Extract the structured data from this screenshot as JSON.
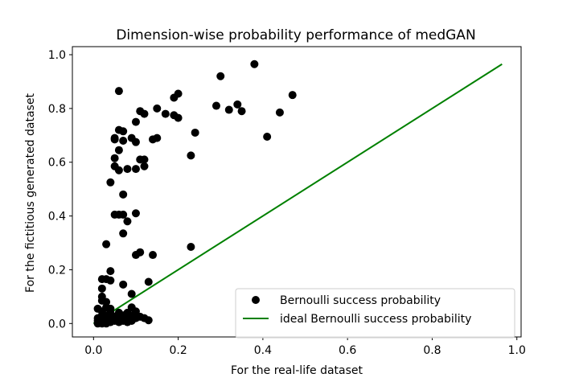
{
  "chart_data": {
    "type": "scatter",
    "title": "Dimension-wise probability performance of medGAN",
    "xlabel": "For the real-life dataset",
    "ylabel": "For the fictitious generated dataset",
    "xlim": [
      -0.05,
      1.01
    ],
    "ylim": [
      -0.05,
      1.03
    ],
    "xticks": [
      0.0,
      0.2,
      0.4,
      0.6,
      0.8,
      1.0
    ],
    "yticks": [
      0.0,
      0.2,
      0.4,
      0.6,
      0.8,
      1.0
    ],
    "tick_labels_x": [
      "0.0",
      "0.2",
      "0.4",
      "0.6",
      "0.8",
      "1.0"
    ],
    "tick_labels_y": [
      "0.0",
      "0.2",
      "0.4",
      "0.6",
      "0.8",
      "1.0"
    ],
    "grid": false,
    "legend_position": "lower-right",
    "series": [
      {
        "name": "Bernoulli success probability",
        "kind": "scatter",
        "color": "#000000",
        "points": [
          [
            0.06,
            0.865
          ],
          [
            0.38,
            0.965
          ],
          [
            0.3,
            0.92
          ],
          [
            0.47,
            0.85
          ],
          [
            0.44,
            0.785
          ],
          [
            0.34,
            0.815
          ],
          [
            0.35,
            0.79
          ],
          [
            0.32,
            0.795
          ],
          [
            0.29,
            0.81
          ],
          [
            0.2,
            0.855
          ],
          [
            0.19,
            0.84
          ],
          [
            0.15,
            0.8
          ],
          [
            0.17,
            0.78
          ],
          [
            0.19,
            0.775
          ],
          [
            0.2,
            0.765
          ],
          [
            0.11,
            0.79
          ],
          [
            0.12,
            0.78
          ],
          [
            0.1,
            0.75
          ],
          [
            0.41,
            0.695
          ],
          [
            0.24,
            0.71
          ],
          [
            0.06,
            0.72
          ],
          [
            0.07,
            0.715
          ],
          [
            0.05,
            0.69
          ],
          [
            0.05,
            0.685
          ],
          [
            0.07,
            0.68
          ],
          [
            0.09,
            0.69
          ],
          [
            0.1,
            0.675
          ],
          [
            0.14,
            0.685
          ],
          [
            0.15,
            0.69
          ],
          [
            0.06,
            0.645
          ],
          [
            0.23,
            0.625
          ],
          [
            0.05,
            0.615
          ],
          [
            0.11,
            0.61
          ],
          [
            0.12,
            0.61
          ],
          [
            0.05,
            0.585
          ],
          [
            0.06,
            0.57
          ],
          [
            0.08,
            0.575
          ],
          [
            0.1,
            0.575
          ],
          [
            0.12,
            0.585
          ],
          [
            0.04,
            0.525
          ],
          [
            0.07,
            0.48
          ],
          [
            0.05,
            0.405
          ],
          [
            0.06,
            0.405
          ],
          [
            0.07,
            0.405
          ],
          [
            0.1,
            0.41
          ],
          [
            0.08,
            0.38
          ],
          [
            0.07,
            0.335
          ],
          [
            0.03,
            0.295
          ],
          [
            0.23,
            0.285
          ],
          [
            0.11,
            0.265
          ],
          [
            0.1,
            0.255
          ],
          [
            0.14,
            0.255
          ],
          [
            0.04,
            0.195
          ],
          [
            0.02,
            0.165
          ],
          [
            0.03,
            0.165
          ],
          [
            0.04,
            0.16
          ],
          [
            0.07,
            0.145
          ],
          [
            0.13,
            0.155
          ],
          [
            0.02,
            0.13
          ],
          [
            0.09,
            0.11
          ],
          [
            0.02,
            0.1
          ],
          [
            0.02,
            0.085
          ],
          [
            0.03,
            0.08
          ],
          [
            0.01,
            0.055
          ],
          [
            0.03,
            0.06
          ],
          [
            0.04,
            0.055
          ],
          [
            0.09,
            0.06
          ],
          [
            0.02,
            0.045
          ],
          [
            0.04,
            0.04
          ],
          [
            0.06,
            0.04
          ],
          [
            0.08,
            0.04
          ],
          [
            0.1,
            0.045
          ],
          [
            0.02,
            0.03
          ],
          [
            0.03,
            0.03
          ],
          [
            0.05,
            0.025
          ],
          [
            0.07,
            0.03
          ],
          [
            0.09,
            0.03
          ],
          [
            0.11,
            0.025
          ],
          [
            0.01,
            0.02
          ],
          [
            0.02,
            0.015
          ],
          [
            0.04,
            0.015
          ],
          [
            0.06,
            0.02
          ],
          [
            0.08,
            0.015
          ],
          [
            0.1,
            0.02
          ],
          [
            0.12,
            0.02
          ],
          [
            0.01,
            0.01
          ],
          [
            0.02,
            0.005
          ],
          [
            0.03,
            0.01
          ],
          [
            0.05,
            0.01
          ],
          [
            0.07,
            0.01
          ],
          [
            0.09,
            0.01
          ],
          [
            0.13,
            0.012
          ],
          [
            0.01,
            0.0
          ],
          [
            0.02,
            0.0
          ],
          [
            0.03,
            0.0
          ],
          [
            0.04,
            0.005
          ],
          [
            0.06,
            0.005
          ],
          [
            0.08,
            0.005
          ]
        ]
      },
      {
        "name": "ideal Bernoulli success probability",
        "kind": "line",
        "color": "#008000",
        "points": [
          [
            0.0,
            0.0
          ],
          [
            0.965,
            0.965
          ]
        ]
      }
    ]
  }
}
